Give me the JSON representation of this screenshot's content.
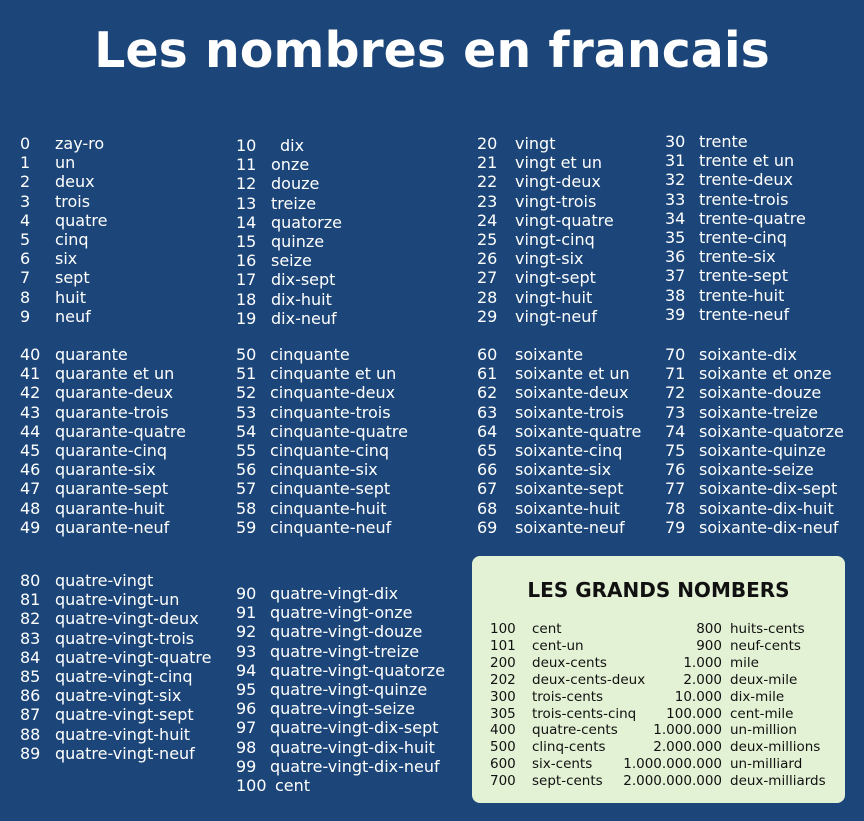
{
  "title": "Les nombres en francais",
  "columns": [
    [
      {
        "n": "0",
        "w": "zay-ro"
      },
      {
        "n": "1",
        "w": "un"
      },
      {
        "n": "2",
        "w": "deux"
      },
      {
        "n": "3",
        "w": "trois"
      },
      {
        "n": "4",
        "w": "quatre"
      },
      {
        "n": "5",
        "w": "cinq"
      },
      {
        "n": "6",
        "w": "six"
      },
      {
        "n": "7",
        "w": "sept"
      },
      {
        "n": "8",
        "w": "huit"
      },
      {
        "n": "9",
        "w": "neuf"
      }
    ],
    [
      {
        "n": "10",
        "w": "dix"
      },
      {
        "n": "11",
        "w": "onze"
      },
      {
        "n": "12",
        "w": "douze"
      },
      {
        "n": "13",
        "w": "treize"
      },
      {
        "n": "14",
        "w": "quatorze"
      },
      {
        "n": "15",
        "w": "quinze"
      },
      {
        "n": "16",
        "w": "seize"
      },
      {
        "n": "17",
        "w": "dix-sept"
      },
      {
        "n": "18",
        "w": "dix-huit"
      },
      {
        "n": "19",
        "w": "dix-neuf"
      }
    ],
    [
      {
        "n": "20",
        "w": "vingt"
      },
      {
        "n": "21",
        "w": "vingt et un"
      },
      {
        "n": "22",
        "w": "vingt-deux"
      },
      {
        "n": "23",
        "w": "vingt-trois"
      },
      {
        "n": "24",
        "w": "vingt-quatre"
      },
      {
        "n": "25",
        "w": "vingt-cinq"
      },
      {
        "n": "26",
        "w": "vingt-six"
      },
      {
        "n": "27",
        "w": "vingt-sept"
      },
      {
        "n": "28",
        "w": "vingt-huit"
      },
      {
        "n": "29",
        "w": "vingt-neuf"
      }
    ],
    [
      {
        "n": "30",
        "w": "trente"
      },
      {
        "n": "31",
        "w": "trente et un"
      },
      {
        "n": "32",
        "w": "trente-deux"
      },
      {
        "n": "33",
        "w": "trente-trois"
      },
      {
        "n": "34",
        "w": "trente-quatre"
      },
      {
        "n": "35",
        "w": "trente-cinq"
      },
      {
        "n": "36",
        "w": "trente-six"
      },
      {
        "n": "37",
        "w": "trente-sept"
      },
      {
        "n": "38",
        "w": "trente-huit"
      },
      {
        "n": "39",
        "w": "trente-neuf"
      }
    ],
    [
      {
        "n": "40",
        "w": "quarante"
      },
      {
        "n": "41",
        "w": "quarante et un"
      },
      {
        "n": "42",
        "w": "quarante-deux"
      },
      {
        "n": "43",
        "w": "quarante-trois"
      },
      {
        "n": "44",
        "w": "quarante-quatre"
      },
      {
        "n": "45",
        "w": "quarante-cinq"
      },
      {
        "n": "46",
        "w": "quarante-six"
      },
      {
        "n": "47",
        "w": "quarante-sept"
      },
      {
        "n": "48",
        "w": "quarante-huit"
      },
      {
        "n": "49",
        "w": "quarante-neuf"
      }
    ],
    [
      {
        "n": "50",
        "w": "cinquante"
      },
      {
        "n": "51",
        "w": "cinquante et un"
      },
      {
        "n": "52",
        "w": "cinquante-deux"
      },
      {
        "n": "53",
        "w": "cinquante-trois"
      },
      {
        "n": "54",
        "w": "cinquante-quatre"
      },
      {
        "n": "55",
        "w": "cinquante-cinq"
      },
      {
        "n": "56",
        "w": "cinquante-six"
      },
      {
        "n": "57",
        "w": "cinquante-sept"
      },
      {
        "n": "58",
        "w": "cinquante-huit"
      },
      {
        "n": "59",
        "w": "cinquante-neuf"
      }
    ],
    [
      {
        "n": "60",
        "w": "soixante"
      },
      {
        "n": "61",
        "w": "soixante et un"
      },
      {
        "n": "62",
        "w": "soixante-deux"
      },
      {
        "n": "63",
        "w": "soixante-trois"
      },
      {
        "n": "64",
        "w": "soixante-quatre"
      },
      {
        "n": "65",
        "w": "soixante-cinq"
      },
      {
        "n": "66",
        "w": "soixante-six"
      },
      {
        "n": "67",
        "w": "soixante-sept"
      },
      {
        "n": "68",
        "w": "soixante-huit"
      },
      {
        "n": "69",
        "w": "soixante-neuf"
      }
    ],
    [
      {
        "n": "70",
        "w": "soixante-dix"
      },
      {
        "n": "71",
        "w": "soixante et onze"
      },
      {
        "n": "72",
        "w": "soixante-douze"
      },
      {
        "n": "73",
        "w": "soixante-treize"
      },
      {
        "n": "74",
        "w": "soixante-quatorze"
      },
      {
        "n": "75",
        "w": "soixante-quinze"
      },
      {
        "n": "76",
        "w": "soixante-seize"
      },
      {
        "n": "77",
        "w": "soixante-dix-sept"
      },
      {
        "n": "78",
        "w": "soixante-dix-huit"
      },
      {
        "n": "79",
        "w": "soixante-dix-neuf"
      }
    ],
    [
      {
        "n": "80",
        "w": "quatre-vingt"
      },
      {
        "n": "81",
        "w": "quatre-vingt-un"
      },
      {
        "n": "82",
        "w": "quatre-vingt-deux"
      },
      {
        "n": "83",
        "w": "quatre-vingt-trois"
      },
      {
        "n": "84",
        "w": "quatre-vingt-quatre"
      },
      {
        "n": "85",
        "w": "quatre-vingt-cinq"
      },
      {
        "n": "86",
        "w": "quatre-vingt-six"
      },
      {
        "n": "87",
        "w": "quatre-vingt-sept"
      },
      {
        "n": "88",
        "w": "quatre-vingt-huit"
      },
      {
        "n": "89",
        "w": "quatre-vingt-neuf"
      }
    ],
    [
      {
        "n": "90",
        "w": "quatre-vingt-dix"
      },
      {
        "n": "91",
        "w": "quatre-vingt-onze"
      },
      {
        "n": "92",
        "w": "quatre-vingt-douze"
      },
      {
        "n": "93",
        "w": "quatre-vingt-treize"
      },
      {
        "n": "94",
        "w": "quatre-vingt-quatorze"
      },
      {
        "n": "95",
        "w": "quatre-vingt-quinze"
      },
      {
        "n": "96",
        "w": "quatre-vingt-seize"
      },
      {
        "n": "97",
        "w": "quatre-vingt-dix-sept"
      },
      {
        "n": "98",
        "w": "quatre-vingt-dix-huit"
      },
      {
        "n": "99",
        "w": "quatre-vingt-dix-neuf"
      },
      {
        "n": "100",
        "w": "cent"
      }
    ]
  ],
  "grands": {
    "title": "LES GRANDS NOMBERS",
    "rows": [
      {
        "n1": "100",
        "w1": "cent",
        "n2": "800",
        "w2": "huits-cents"
      },
      {
        "n1": "101",
        "w1": "cent-un",
        "n2": "900",
        "w2": "neuf-cents"
      },
      {
        "n1": "200",
        "w1": "deux-cents",
        "n2": "1.000",
        "w2": " mile"
      },
      {
        "n1": "202",
        "w1": "deux-cents-deux",
        "n2": "2.000",
        "w2": "deux-mile"
      },
      {
        "n1": "300",
        "w1": "trois-cents",
        "n2": "10.000",
        "w2": "dix-mile"
      },
      {
        "n1": "305",
        "w1": "trois-cents-cinq",
        "n2": "100.000",
        "w2": "cent-mile"
      },
      {
        "n1": "400",
        "w1": "quatre-cents",
        "n2": "1.000.000",
        "w2": "un-million"
      },
      {
        "n1": "500",
        "w1": "clinq-cents",
        "n2": "2.000.000",
        "w2": "deux-millions"
      },
      {
        "n1": "600",
        "w1": "six-cents",
        "n2": "1.000.000.000",
        "w2": " un-milliard"
      },
      {
        "n1": "700",
        "w1": "sept-cents",
        "n2": "2.000.000.000",
        "w2": "deux-milliards"
      }
    ]
  },
  "colors": {
    "background": "#1c4679",
    "box": "#e3f1d4",
    "text": "#ffffff"
  }
}
